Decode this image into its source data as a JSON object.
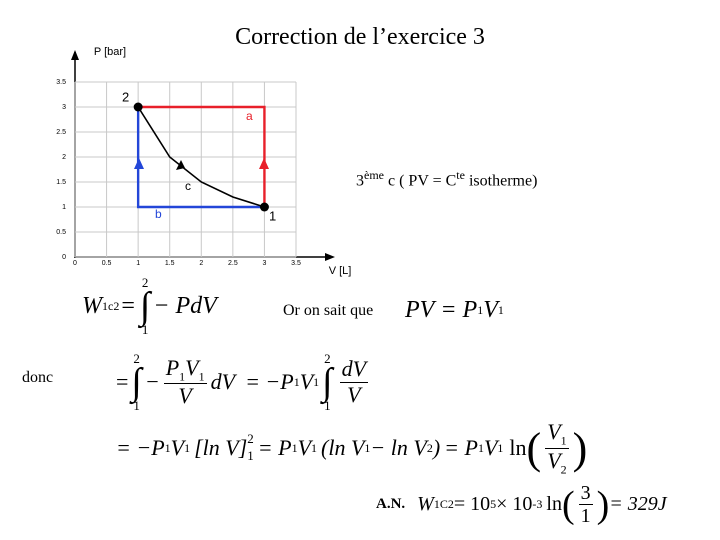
{
  "title": "Correction de l’exercice 3",
  "chart_data": {
    "type": "line",
    "x_label": "V [L]",
    "y_label": "P [bar]",
    "xlim": [
      0,
      3.5
    ],
    "ylim": [
      0,
      3.5
    ],
    "xticks": [
      0,
      0.5,
      1,
      1.5,
      2,
      2.5,
      3,
      3.5
    ],
    "yticks": [
      0,
      0.5,
      1,
      1.5,
      2,
      2.5,
      3,
      3.5
    ],
    "grid": true,
    "series": [
      {
        "name": "a",
        "color": "#e8202a",
        "x": [
          3,
          3,
          1
        ],
        "values": [
          1,
          3,
          3
        ]
      },
      {
        "name": "b",
        "color": "#2346d8",
        "x": [
          3,
          1,
          1
        ],
        "values": [
          1,
          1,
          3
        ]
      },
      {
        "name": "c",
        "color": "#000000",
        "x": [
          1,
          1.5,
          2,
          2.5,
          3
        ],
        "values": [
          3,
          2,
          1.5,
          1.2,
          1
        ]
      }
    ],
    "points": [
      {
        "name": "1",
        "x": 3,
        "value": 1
      },
      {
        "name": "2",
        "x": 1,
        "value": 3
      }
    ]
  },
  "note": [
    "3",
    "ème",
    " c  ( PV = C",
    "te",
    " isotherme)"
  ],
  "eq0": [
    "W",
    "1c2",
    "=",
    "2",
    "∫",
    "1",
    "− PdV"
  ],
  "or_text": "Or on sait que",
  "eq1": [
    "PV",
    "= P",
    "1",
    "V",
    "1"
  ],
  "donc": "donc",
  "eq2": [
    "=",
    "2",
    "∫",
    "1",
    "−",
    "P",
    "1",
    "V",
    "1",
    "V",
    "dV",
    "= −P",
    "1",
    "V",
    "1",
    "2",
    "∫",
    "1",
    "dV",
    "V"
  ],
  "eq3": [
    "= −P",
    "1",
    "V",
    "1",
    "[ln V]",
    "2",
    "1",
    "= P",
    "1",
    "V",
    "1",
    "(ln V",
    "1",
    "− ln V",
    "2",
    ")",
    "= P",
    "1",
    "V",
    "1",
    "ln",
    "(",
    "V",
    "1",
    "V",
    "2",
    ")"
  ],
  "eq4": [
    "A.N.",
    "W",
    "1C2",
    "= 10",
    "5",
    "× 10",
    "-3",
    "ln",
    "(",
    "3",
    "1",
    ")",
    "= 329J"
  ]
}
